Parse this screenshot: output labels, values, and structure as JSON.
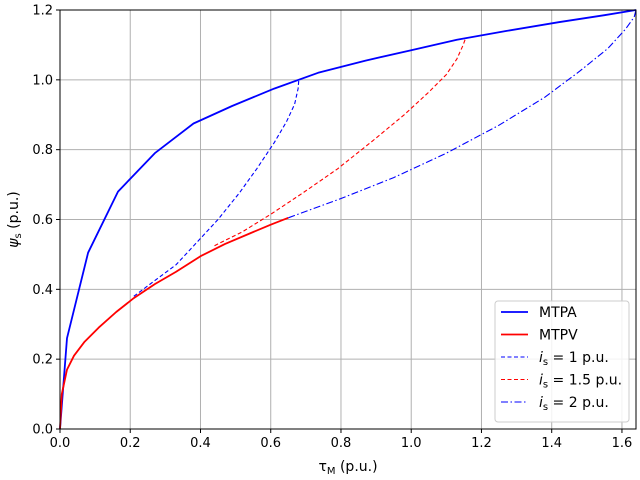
{
  "chart_data": {
    "type": "line",
    "title": "",
    "xlabel": {
      "symbol": "τ",
      "sub": "M",
      "unit": " (p.u.)"
    },
    "ylabel": {
      "symbol": "ψ",
      "sub": "s",
      "unit": " (p.u.)"
    },
    "xlim": [
      0,
      1.64
    ],
    "ylim": [
      0,
      1.2
    ],
    "grid": true,
    "legend_position": "lower-right",
    "xticks": [
      "0.0",
      "0.2",
      "0.4",
      "0.6",
      "0.8",
      "1.0",
      "1.2",
      "1.4",
      "1.6"
    ],
    "yticks": [
      "0.0",
      "0.2",
      "0.4",
      "0.6",
      "0.8",
      "1.0",
      "1.2"
    ],
    "series": [
      {
        "name": "MTPA",
        "color": "#0000ff",
        "style": "solid",
        "x": [
          0.0,
          0.02,
          0.08,
          0.165,
          0.27,
          0.38,
          0.49,
          0.61,
          0.735,
          0.87,
          1.0,
          1.13,
          1.27,
          1.42,
          1.55,
          1.64
        ],
        "y": [
          0.0,
          0.26,
          0.505,
          0.68,
          0.79,
          0.875,
          0.925,
          0.975,
          1.02,
          1.055,
          1.085,
          1.115,
          1.14,
          1.165,
          1.185,
          1.2
        ]
      },
      {
        "name": "MTPV",
        "color": "#ff0000",
        "style": "solid",
        "x": [
          0.0,
          0.005,
          0.02,
          0.04,
          0.07,
          0.11,
          0.16,
          0.21,
          0.27,
          0.33,
          0.4,
          0.47,
          0.54,
          0.6,
          0.65
        ],
        "y": [
          0.0,
          0.1,
          0.17,
          0.21,
          0.25,
          0.29,
          0.335,
          0.375,
          0.415,
          0.45,
          0.495,
          0.53,
          0.56,
          0.585,
          0.605
        ]
      },
      {
        "name": "1 p.u.",
        "legend_prefix": "i",
        "legend_sub": "s",
        "legend_eq": " = ",
        "color": "#0000ff",
        "style": "dashed",
        "x": [
          0.21,
          0.27,
          0.33,
          0.39,
          0.45,
          0.51,
          0.56,
          0.61,
          0.645,
          0.668,
          0.678,
          0.68
        ],
        "y": [
          0.38,
          0.425,
          0.47,
          0.535,
          0.6,
          0.675,
          0.745,
          0.82,
          0.88,
          0.93,
          0.975,
          1.0
        ]
      },
      {
        "name": "1.5 p.u.",
        "legend_prefix": "i",
        "legend_sub": "s",
        "legend_eq": " = ",
        "color": "#ff0000",
        "style": "dashed",
        "x": [
          0.44,
          0.52,
          0.6,
          0.69,
          0.79,
          0.89,
          0.98,
          1.05,
          1.1,
          1.13,
          1.148,
          1.155
        ],
        "y": [
          0.525,
          0.565,
          0.615,
          0.675,
          0.745,
          0.825,
          0.9,
          0.965,
          1.015,
          1.06,
          1.1,
          1.12
        ]
      },
      {
        "name": "2 p.u.",
        "legend_prefix": "i",
        "legend_sub": "s",
        "legend_eq": " = ",
        "color": "#0000ff",
        "style": "dashdot",
        "x": [
          0.65,
          0.8,
          0.95,
          1.1,
          1.25,
          1.38,
          1.48,
          1.56,
          1.61,
          1.635,
          1.64
        ],
        "y": [
          0.605,
          0.66,
          0.72,
          0.79,
          0.87,
          0.95,
          1.025,
          1.09,
          1.145,
          1.18,
          1.2
        ]
      }
    ]
  }
}
